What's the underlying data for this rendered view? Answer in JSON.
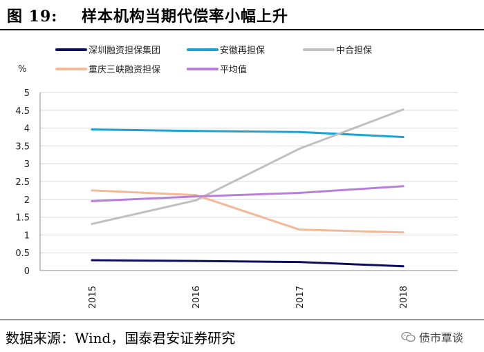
{
  "header": {
    "figure_label": "图 19:",
    "title": "样本机构当期代偿率小幅上升"
  },
  "footer": {
    "source": "数据来源：Wind，国泰君安证券研究",
    "watermark": "债市覃谈"
  },
  "chart_data": {
    "type": "line",
    "title": "样本机构当期代偿率小幅上升",
    "ylabel": "%",
    "xlabel": "",
    "categories": [
      "2015",
      "2016",
      "2017",
      "2018"
    ],
    "ylim": [
      0,
      5
    ],
    "yticks": [
      "0",
      "0.5",
      "1",
      "1.5",
      "2",
      "2.5",
      "3",
      "3.5",
      "4",
      "4.5",
      "5"
    ],
    "grid": true,
    "legend_position": "top",
    "series": [
      {
        "name": "深圳融资担保集团",
        "color": "#0d0d5e",
        "values": [
          0.29,
          0.27,
          0.24,
          0.12
        ]
      },
      {
        "name": "安徽再担保",
        "color": "#1aa3d4",
        "values": [
          3.96,
          3.92,
          3.89,
          3.75
        ]
      },
      {
        "name": "中合担保",
        "color": "#c0c0c0",
        "values": [
          1.31,
          1.97,
          3.42,
          4.52
        ]
      },
      {
        "name": "重庆三峡融资担保",
        "color": "#f4b896",
        "values": [
          2.25,
          2.12,
          1.15,
          1.07
        ]
      },
      {
        "name": "平均值",
        "color": "#b77fd9",
        "values": [
          1.95,
          2.08,
          2.18,
          2.37
        ]
      }
    ]
  }
}
